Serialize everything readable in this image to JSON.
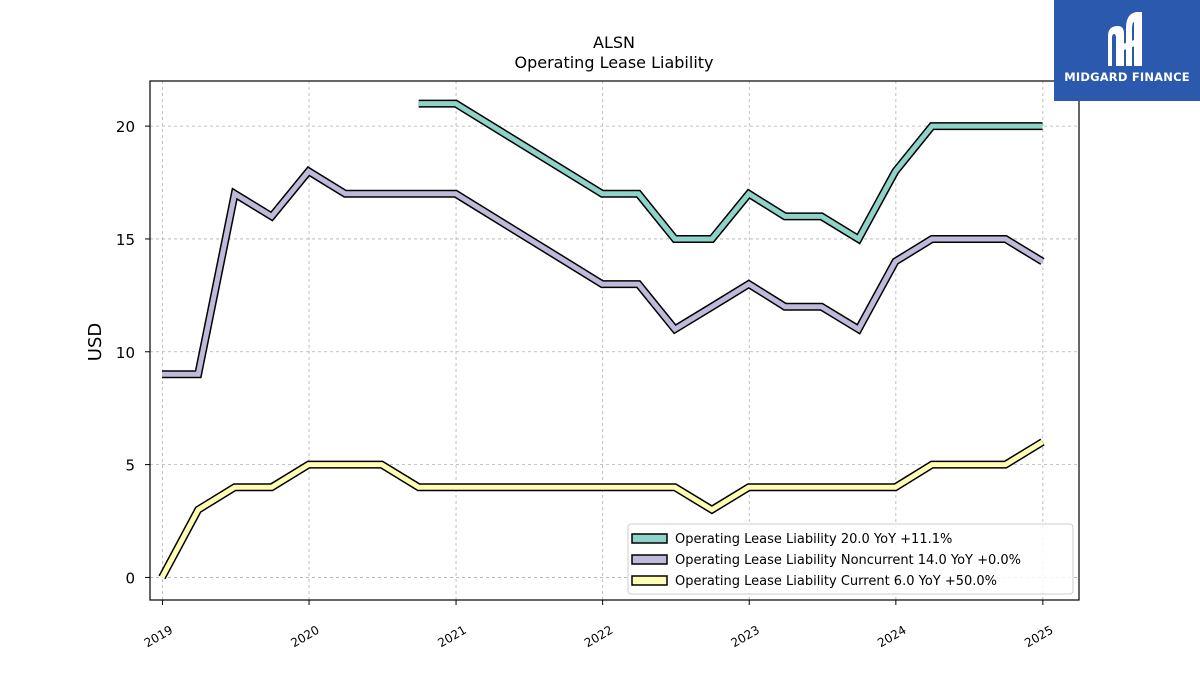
{
  "chart_data": {
    "type": "line",
    "title": "ALSN",
    "subtitle": "Operating Lease Liability",
    "xlabel": "",
    "ylabel": "USD",
    "xlim": [
      "2018-12-01",
      "2025-04-01"
    ],
    "ylim": [
      -1,
      22
    ],
    "x_ticks": [
      "2019",
      "2020",
      "2021",
      "2022",
      "2023",
      "2024",
      "2025"
    ],
    "y_ticks": [
      0,
      5,
      10,
      15,
      20
    ],
    "grid": true,
    "legend_position": "lower-right",
    "series": [
      {
        "name": "Operating Lease Liability  20.0 YoY +11.1%",
        "color": "#8dd3c7",
        "points": [
          [
            "2020-09-30",
            21
          ],
          [
            "2020-12-31",
            21
          ],
          [
            "2021-12-31",
            17
          ],
          [
            "2022-03-31",
            17
          ],
          [
            "2022-06-30",
            15
          ],
          [
            "2022-09-30",
            15
          ],
          [
            "2022-12-31",
            17
          ],
          [
            "2023-03-31",
            16
          ],
          [
            "2023-06-30",
            16
          ],
          [
            "2023-09-30",
            15
          ],
          [
            "2023-12-31",
            18
          ],
          [
            "2024-03-31",
            20
          ],
          [
            "2024-06-30",
            20
          ],
          [
            "2024-09-30",
            20
          ],
          [
            "2024-12-31",
            20
          ]
        ]
      },
      {
        "name": "Operating Lease Liability Noncurrent  14.0 YoY +0.0%",
        "color": "#bebada",
        "points": [
          [
            "2018-12-31",
            9
          ],
          [
            "2019-03-31",
            9
          ],
          [
            "2019-06-30",
            17
          ],
          [
            "2019-09-30",
            16
          ],
          [
            "2019-12-31",
            18
          ],
          [
            "2020-03-31",
            17
          ],
          [
            "2020-06-30",
            17
          ],
          [
            "2020-09-30",
            17
          ],
          [
            "2020-12-31",
            17
          ],
          [
            "2021-12-31",
            13
          ],
          [
            "2022-03-31",
            13
          ],
          [
            "2022-06-30",
            11
          ],
          [
            "2022-09-30",
            12
          ],
          [
            "2022-12-31",
            13
          ],
          [
            "2023-03-31",
            12
          ],
          [
            "2023-06-30",
            12
          ],
          [
            "2023-09-30",
            11
          ],
          [
            "2023-12-31",
            14
          ],
          [
            "2024-03-31",
            15
          ],
          [
            "2024-06-30",
            15
          ],
          [
            "2024-09-30",
            15
          ],
          [
            "2024-12-31",
            14
          ]
        ]
      },
      {
        "name": "Operating Lease Liability Current  6.0 YoY +50.0%",
        "color": "#ffffb3",
        "points": [
          [
            "2018-12-31",
            0
          ],
          [
            "2019-03-31",
            3
          ],
          [
            "2019-06-30",
            4
          ],
          [
            "2019-09-30",
            4
          ],
          [
            "2019-12-31",
            5
          ],
          [
            "2020-03-31",
            5
          ],
          [
            "2020-06-30",
            5
          ],
          [
            "2020-09-30",
            4
          ],
          [
            "2020-12-31",
            4
          ],
          [
            "2021-12-31",
            4
          ],
          [
            "2022-03-31",
            4
          ],
          [
            "2022-06-30",
            4
          ],
          [
            "2022-09-30",
            3
          ],
          [
            "2022-12-31",
            4
          ],
          [
            "2023-03-31",
            4
          ],
          [
            "2023-06-30",
            4
          ],
          [
            "2023-09-30",
            4
          ],
          [
            "2023-12-31",
            4
          ],
          [
            "2024-03-31",
            5
          ],
          [
            "2024-06-30",
            5
          ],
          [
            "2024-09-30",
            5
          ],
          [
            "2024-12-31",
            6
          ]
        ]
      }
    ]
  },
  "logo": {
    "text": "MIDGARD FINANCE",
    "background": "#2b59ad",
    "icon": "midgard-logo-icon"
  }
}
